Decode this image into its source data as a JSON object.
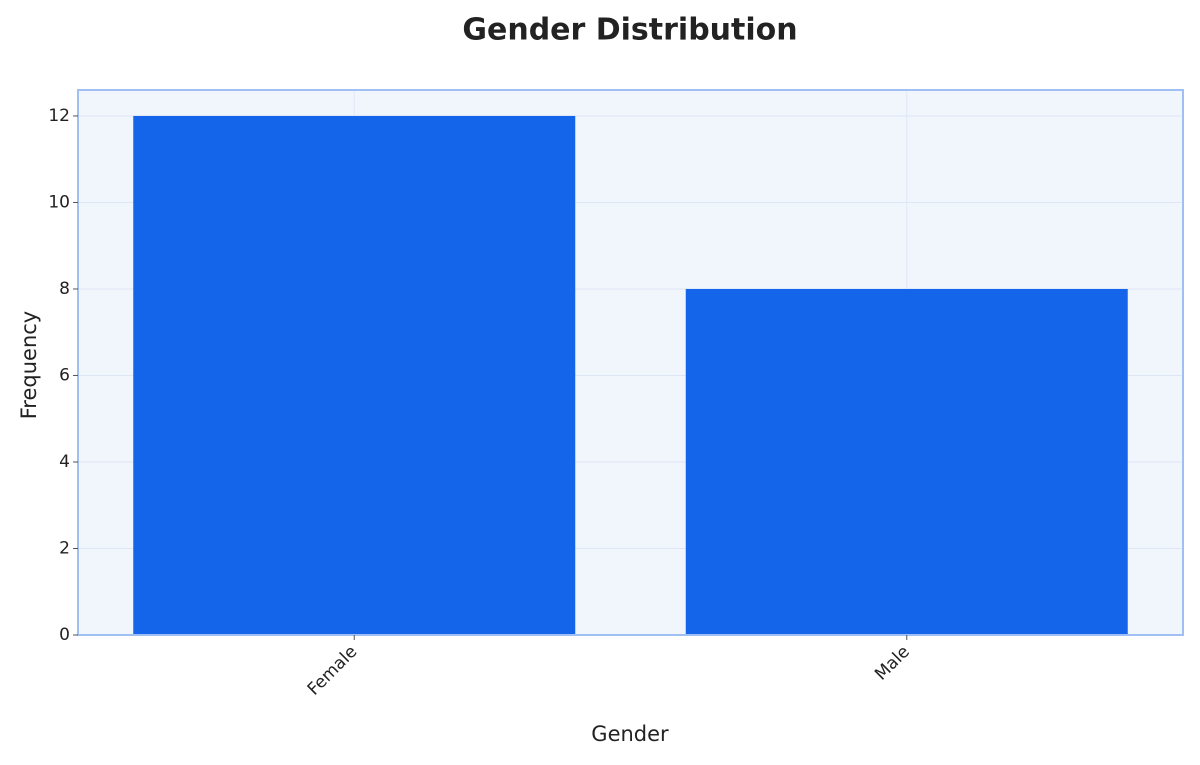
{
  "chart_data": {
    "type": "bar",
    "title": "Gender Distribution",
    "x_label": "Gender",
    "y_label": "Frequency",
    "categories": [
      "Female",
      "Male"
    ],
    "values": [
      12,
      8
    ],
    "color": "#1565eb",
    "ylim": [
      0,
      12.6
    ],
    "yticks": [
      0,
      2,
      4,
      6,
      8,
      10,
      12
    ],
    "grid": true
  }
}
